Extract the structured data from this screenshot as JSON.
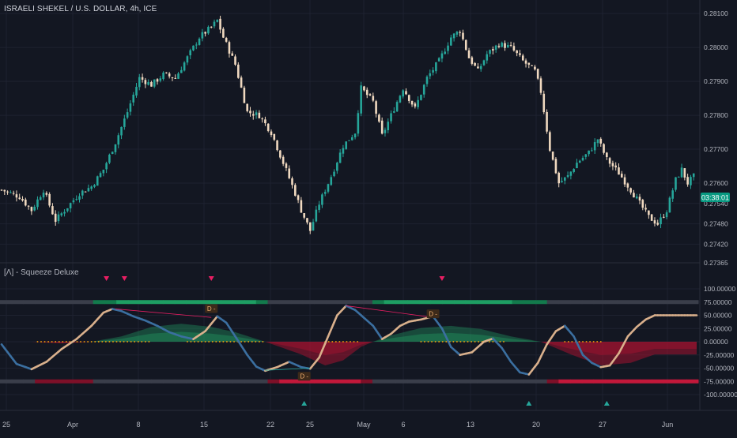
{
  "header": {
    "symbol_title": "ISRAELI SHEKEL / U.S. DOLLAR, 4h, ICE"
  },
  "indicator": {
    "title": "[Λ] - Squeeze Deluxe"
  },
  "colors": {
    "background": "#131722",
    "grid": "#1e2230",
    "text": "#b2b5be",
    "candle_up": "#26a69a",
    "candle_down": "#f0d9c0",
    "price_badge": "#089981",
    "momentum_up": "#d9b08c",
    "momentum_down": "#3b6fa0",
    "bull_fill": "#1f8a5a",
    "bear_fill": "#a3122f",
    "marker_green": "#26a69a",
    "marker_red": "#e91e63",
    "squeeze_dot": "#f59e0b"
  },
  "price_axis": {
    "ticks": [
      "0.28100",
      "0.28000",
      "0.27900",
      "0.27800",
      "0.27700",
      "0.27600",
      "0.27540",
      "0.27480",
      "0.27420",
      "0.27365"
    ],
    "current_price_time": "03:38:01"
  },
  "indicator_axis": {
    "ticks": [
      "100.00000",
      "75.00000",
      "50.00000",
      "25.00000",
      "0.00000",
      "-25.00000",
      "-50.00000",
      "-75.00000",
      "-100.00000"
    ]
  },
  "time_axis": {
    "labels": [
      "25",
      "Apr",
      "8",
      "15",
      "22",
      "25",
      "May",
      "6",
      "13",
      "20",
      "27",
      "Jun"
    ]
  },
  "badges": {
    "divergence_label": "D -"
  },
  "chart_data": [
    {
      "type": "candlestick",
      "title": "ISRAELI SHEKEL / U.S. DOLLAR, 4h, ICE",
      "ylim": [
        0.27365,
        0.2814
      ],
      "x_labels": [
        "25",
        "Apr",
        "8",
        "15",
        "22",
        "25",
        "May",
        "6",
        "13",
        "20",
        "27",
        "Jun"
      ],
      "trend": [
        [
          0,
          0.2758
        ],
        [
          6,
          0.2756
        ],
        [
          10,
          0.2752
        ],
        [
          14,
          0.2758
        ],
        [
          18,
          0.2749
        ],
        [
          22,
          0.2753
        ],
        [
          26,
          0.2757
        ],
        [
          30,
          0.2759
        ],
        [
          34,
          0.2764
        ],
        [
          38,
          0.2772
        ],
        [
          42,
          0.2781
        ],
        [
          46,
          0.2791
        ],
        [
          50,
          0.2789
        ],
        [
          54,
          0.2792
        ],
        [
          58,
          0.2791
        ],
        [
          62,
          0.2797
        ],
        [
          66,
          0.2803
        ],
        [
          70,
          0.2806
        ],
        [
          72,
          0.2808
        ],
        [
          74,
          0.2803
        ],
        [
          78,
          0.2795
        ],
        [
          82,
          0.2781
        ],
        [
          86,
          0.278
        ],
        [
          90,
          0.2775
        ],
        [
          94,
          0.2766
        ],
        [
          98,
          0.2757
        ],
        [
          100,
          0.2752
        ],
        [
          103,
          0.2746
        ],
        [
          106,
          0.2754
        ],
        [
          110,
          0.2762
        ],
        [
          114,
          0.2771
        ],
        [
          118,
          0.2775
        ],
        [
          120,
          0.2788
        ],
        [
          124,
          0.2784
        ],
        [
          127,
          0.2774
        ],
        [
          130,
          0.278
        ],
        [
          134,
          0.2788
        ],
        [
          138,
          0.2782
        ],
        [
          142,
          0.2791
        ],
        [
          146,
          0.2796
        ],
        [
          150,
          0.2803
        ],
        [
          153,
          0.2805
        ],
        [
          156,
          0.2797
        ],
        [
          159,
          0.2793
        ],
        [
          162,
          0.2798
        ],
        [
          166,
          0.2801
        ],
        [
          170,
          0.28
        ],
        [
          174,
          0.2796
        ],
        [
          178,
          0.2793
        ],
        [
          180,
          0.2787
        ],
        [
          183,
          0.277
        ],
        [
          186,
          0.276
        ],
        [
          189,
          0.2762
        ],
        [
          192,
          0.2766
        ],
        [
          196,
          0.2769
        ],
        [
          199,
          0.2773
        ],
        [
          202,
          0.2767
        ],
        [
          206,
          0.2763
        ],
        [
          210,
          0.2758
        ],
        [
          213,
          0.2754
        ],
        [
          216,
          0.275
        ],
        [
          219,
          0.2748
        ],
        [
          222,
          0.2752
        ],
        [
          225,
          0.2761
        ],
        [
          227,
          0.2764
        ],
        [
          229,
          0.276
        ],
        [
          231,
          0.2762
        ]
      ],
      "current_price_label": "03:38:01"
    },
    {
      "type": "line",
      "title": "[Λ] - Squeeze Deluxe",
      "ylim": [
        -100,
        100
      ],
      "series": [
        {
          "values": [
            [
              0,
              -5
            ],
            [
              5,
              -42
            ],
            [
              10,
              -52
            ],
            [
              15,
              -38
            ],
            [
              20,
              -14
            ],
            [
              25,
              5
            ],
            [
              30,
              30
            ],
            [
              34,
              55
            ],
            [
              37,
              62
            ],
            [
              40,
              58
            ],
            [
              44,
              48
            ],
            [
              48,
              40
            ],
            [
              52,
              30
            ],
            [
              56,
              18
            ],
            [
              60,
              10
            ],
            [
              64,
              5
            ],
            [
              68,
              20
            ],
            [
              72,
              48
            ],
            [
              75,
              36
            ],
            [
              78,
              10
            ],
            [
              82,
              -25
            ],
            [
              85,
              -47
            ],
            [
              88,
              -55
            ],
            [
              92,
              -48
            ],
            [
              96,
              -38
            ],
            [
              100,
              -48
            ],
            [
              103,
              -51
            ],
            [
              106,
              -30
            ],
            [
              109,
              10
            ],
            [
              112,
              50
            ],
            [
              115,
              68
            ],
            [
              118,
              60
            ],
            [
              121,
              45
            ],
            [
              124,
              30
            ],
            [
              127,
              5
            ],
            [
              130,
              15
            ],
            [
              133,
              30
            ],
            [
              136,
              38
            ],
            [
              140,
              42
            ],
            [
              144,
              48
            ],
            [
              147,
              25
            ],
            [
              150,
              -10
            ],
            [
              153,
              -25
            ],
            [
              157,
              -20
            ],
            [
              161,
              0
            ],
            [
              164,
              6
            ],
            [
              167,
              -12
            ],
            [
              170,
              -38
            ],
            [
              173,
              -58
            ],
            [
              176,
              -62
            ],
            [
              179,
              -40
            ],
            [
              182,
              -5
            ],
            [
              185,
              20
            ],
            [
              188,
              30
            ],
            [
              191,
              10
            ],
            [
              194,
              -25
            ],
            [
              197,
              -40
            ],
            [
              200,
              -48
            ],
            [
              203,
              -45
            ],
            [
              206,
              -22
            ],
            [
              209,
              10
            ],
            [
              212,
              28
            ],
            [
              215,
              42
            ],
            [
              218,
              50
            ]
          ]
        },
        {
          "values": [
            [
              0,
              0
            ],
            [
              10,
              0
            ],
            [
              20,
              -2
            ],
            [
              30,
              0
            ],
            [
              40,
              10
            ],
            [
              50,
              28
            ],
            [
              60,
              34
            ],
            [
              70,
              28
            ],
            [
              78,
              18
            ],
            [
              88,
              0
            ],
            [
              100,
              -15
            ],
            [
              108,
              -28
            ],
            [
              114,
              -22
            ],
            [
              120,
              -6
            ],
            [
              124,
              0
            ],
            [
              130,
              12
            ],
            [
              140,
              26
            ],
            [
              150,
              30
            ],
            [
              160,
              24
            ],
            [
              170,
              10
            ],
            [
              180,
              0
            ],
            [
              190,
              -15
            ],
            [
              200,
              -28
            ],
            [
              210,
              -25
            ],
            [
              218,
              -15
            ]
          ]
        }
      ],
      "signals": {
        "bearish_triangles_x": [
          35,
          41,
          70,
          147
        ],
        "bullish_triangles_x": [
          101,
          176,
          202
        ],
        "divergence_labels": [
          {
            "x": 70,
            "y": 62,
            "text": "D -"
          },
          {
            "x": 101,
            "y": -66,
            "text": "D -"
          },
          {
            "x": 144,
            "y": 52,
            "text": "D -"
          }
        ]
      }
    }
  ]
}
